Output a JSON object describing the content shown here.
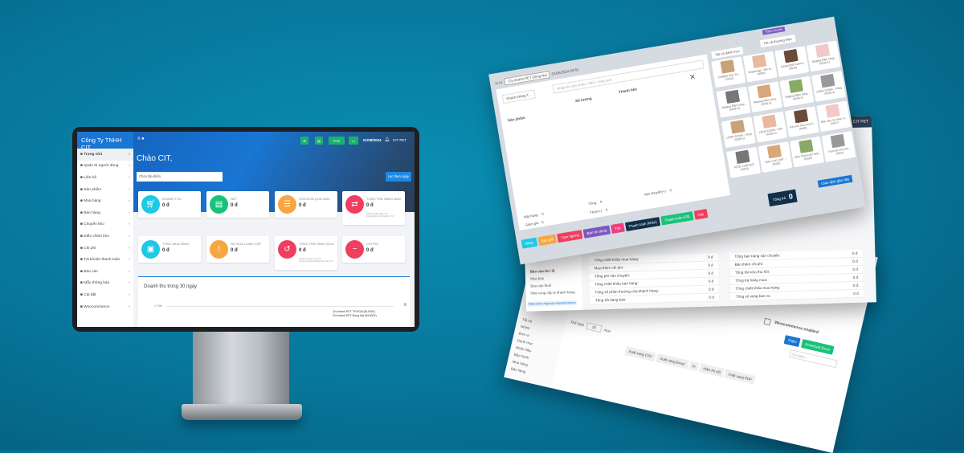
{
  "monitor": {
    "sidebar": {
      "company": "Công Ty TNHH CIT",
      "items": [
        {
          "label": "Trang chủ",
          "icon": "dashboard-icon",
          "active": true
        },
        {
          "label": "Quản trị người dùng",
          "icon": "users-icon"
        },
        {
          "label": "Liên hệ",
          "icon": "contact-icon"
        },
        {
          "label": "Sản phẩm",
          "icon": "cubes-icon"
        },
        {
          "label": "Mua hàng",
          "icon": "cart-icon"
        },
        {
          "label": "Bán hàng",
          "icon": "sell-icon"
        },
        {
          "label": "Chuyển kho",
          "icon": "truck-icon"
        },
        {
          "label": "Điều chỉnh kho",
          "icon": "database-icon"
        },
        {
          "label": "Chi phí",
          "icon": "minus-circle-icon"
        },
        {
          "label": "Tài khoản thanh toán",
          "icon": "money-icon"
        },
        {
          "label": "Báo cáo",
          "icon": "chart-icon"
        },
        {
          "label": "Mẫu thông báo",
          "icon": "envelope-icon"
        },
        {
          "label": "Cài đặt",
          "icon": "gear-icon"
        },
        {
          "label": "Woocommerce",
          "icon": "wordpress-icon"
        }
      ]
    },
    "topbar": {
      "pos_label": "POS",
      "date": "01/08/2024",
      "user": "CIT PET"
    },
    "greeting": "Chào CIT,",
    "location_placeholder": "Chọn địa điểm",
    "filter_button": "Lọc theo ngày",
    "cards": [
      {
        "title": "DOANH THU",
        "value": "0 đ",
        "color": "#1ec8e6",
        "icon": "cart-icon"
      },
      {
        "title": "NET",
        "value": "0 đ",
        "color": "#19c27a",
        "icon": "document-icon"
      },
      {
        "title": "HÓA ĐƠN QUÁ HẠN",
        "value": "0 đ",
        "color": "#f7a640",
        "icon": "list-icon"
      },
      {
        "title": "TỔNG TRẢ HÀNG BÁN",
        "value": "0 đ",
        "color": "#ef3e5f",
        "icon": "exchange-icon",
        "note1": "Tổng trả hàng bán: 0 đ",
        "note2": "Trả lại không có hóa đơn: 0 đ"
      },
      {
        "title": "TỔNG MUA HÀNG",
        "value": "0 đ",
        "color": "#1ec8e6",
        "icon": "money-icon"
      },
      {
        "title": "NỢ NHÀ CUNG CẤP",
        "value": "0 đ",
        "color": "#f7a640",
        "icon": "exclamation-icon"
      },
      {
        "title": "TỔNG TRẢ HÀNG MUA",
        "value": "0 đ",
        "color": "#ef3e5f",
        "icon": "undo-icon",
        "note1": "Tổng trả hàng mua: 0 đ",
        "note2": "Tổng số hoàn trả hàng được trả: 0 đ"
      },
      {
        "title": "CHI PHÍ",
        "value": "0 đ",
        "color": "#ef3e5f",
        "icon": "minus-circle-icon"
      }
    ],
    "chart": {
      "title": "Doanh thu trong 30 ngày",
      "ytick": "17.5M",
      "legend": [
        "Chi nhánh PET TP.HCM (BL0001)",
        "Chi nhánh PET Đồng Nai (BL0002)"
      ]
    }
  },
  "pos": {
    "location_label": "Vị trí:",
    "location": "Chi nhánh PET Đồng Nai",
    "datetime": "01/08/2024 09:54",
    "customer": "Khách Hàng T...",
    "search_placeholder": "Nhập tên sản phẩm / SKU / máy quét",
    "columns": [
      "Sản phẩm",
      "Số lượng",
      "Thành tiền"
    ],
    "summary": {
      "items_label": "Mặt hàng:",
      "items": "0",
      "total_label": "Tổng:",
      "total": "0",
      "discount_label": "Giảm giá",
      "discount": "0",
      "tax_label": "Thuế(+):",
      "tax": "0",
      "shipping_label": "Vận chuyển(+):",
      "shipping": "0"
    },
    "category_filter": "Tất cả danh mục",
    "brand_filter": "Tất cả thương hiệu",
    "add_expense": "Thêm chi phí",
    "products": [
      {
        "name": "COMBO thức ăn...",
        "sku": "(0032)"
      },
      {
        "name": "Dogsmagy - Mix th...",
        "sku": "(0000)"
      },
      {
        "name": "GANADOR PUPPY",
        "sku": "(0029)"
      },
      {
        "name": "Nipptog Đầm công...",
        "sku": "(0036-1)"
      },
      {
        "name": "Nipptog Đầm công...",
        "sku": "(0036-3)"
      },
      {
        "name": "Nipptog Đầm công...",
        "sku": "(0036-2)"
      },
      {
        "name": "Nipptog Đầm công...",
        "sku": "(0036-4)"
      },
      {
        "name": "LỒNG D206A - Trắng",
        "sku": "(0035-3)"
      },
      {
        "name": "LỒNG D206A - Vàng",
        "sku": "(0035-1)"
      },
      {
        "name": "LỒNG D206A - Đen",
        "sku": "(0035-2)"
      },
      {
        "name": "Đồ chơi thú cưng 6...",
        "sku": "(0030)"
      },
      {
        "name": "Nhà cây cho mèo -C...",
        "sku": "(0027)"
      },
      {
        "name": "PATE CIAO 60G",
        "sku": "(0003)"
      },
      {
        "name": "SỮA CAO CẤP ...",
        "sku": "(0020)"
      },
      {
        "name": "SỮA TẮM KHỬ MÙI...",
        "sku": "(0028)"
      },
      {
        "name": "Thức ăn cho chó...",
        "sku": "(0001)"
      }
    ],
    "actions": [
      {
        "label": "Nháp",
        "color": "#1ec8e6"
      },
      {
        "label": "Báo giá",
        "color": "#f7a640"
      },
      {
        "label": "Tạm ngưng",
        "color": "#ef3e5f"
      },
      {
        "label": "Bán tín dụng",
        "color": "#7e57c2"
      },
      {
        "label": "Thẻ",
        "color": "#ef3e7f"
      },
      {
        "label": "Thanh toán (khác)",
        "color": "#10304a"
      },
      {
        "label": "Thanh toán (F9)",
        "color": "#19c27a"
      },
      {
        "label": "Hủy",
        "color": "#ef3e5f"
      }
    ],
    "grand_total_label": "Tổng trả",
    "grand_total": "0",
    "recent_button": "Giao dịch gần đây"
  },
  "report": {
    "menu": [
      "Báo cáo lãi / lỗ",
      "Mua bán",
      "Báo cáo thuế",
      "Nhà cung cấp & khách hàng"
    ],
    "url": "https://pos.citgroup.vn/public/home",
    "left_rows": [
      {
        "label": "Tổng chiết khấu mua hàng:",
        "value": "0 đ"
      },
      {
        "label": "Mua thêm chi phí:",
        "value": "0 đ"
      },
      {
        "label": "Tổng phí vận chuyển:",
        "value": "0 đ"
      },
      {
        "label": "Tổng chiết khấu bán hàng:",
        "value": "0 đ"
      },
      {
        "label": "Tổng số phần thưởng của khách hàng:",
        "value": "0 đ"
      },
      {
        "label": "Tổng trả hàng bán:",
        "value": "0 đ"
      }
    ],
    "right_rows": [
      {
        "label": "Tổng bán hàng vận chuyển:",
        "value": "0 đ"
      },
      {
        "label": "Bán thêm chi phí:",
        "value": "0 đ"
      },
      {
        "label": "Tổng tồn kho thu hồi:",
        "value": "0 đ"
      },
      {
        "label": "Tổng trả hàng mua:",
        "value": "0 đ"
      },
      {
        "label": "Tổng chiết khấu mua hàng:",
        "value": "0 đ"
      },
      {
        "label": "Tổng số vòng bán ra:",
        "value": "0 đ"
      }
    ],
    "header_user": "CIT PET"
  },
  "list": {
    "show_label": "Thể hiện",
    "show_value": "25",
    "show_suffix": "mục",
    "exports": [
      "Xuất sang CSV",
      "Xuất sang Excel",
      "In",
      "Hiện thị cột",
      "Xuất sang PDF"
    ],
    "add_button": "Thêm",
    "download_button": "Download Excel",
    "search_placeholder": "Tìm kiếm ...",
    "woo_label": "Woocommerce enabled",
    "sidebar": [
      "Tất cả",
      "Nhóm",
      "Đơn vị",
      "Danh mục",
      "Nhãn hiệu",
      "Bảo hành",
      "Mua hàng",
      "Bán hàng"
    ]
  }
}
